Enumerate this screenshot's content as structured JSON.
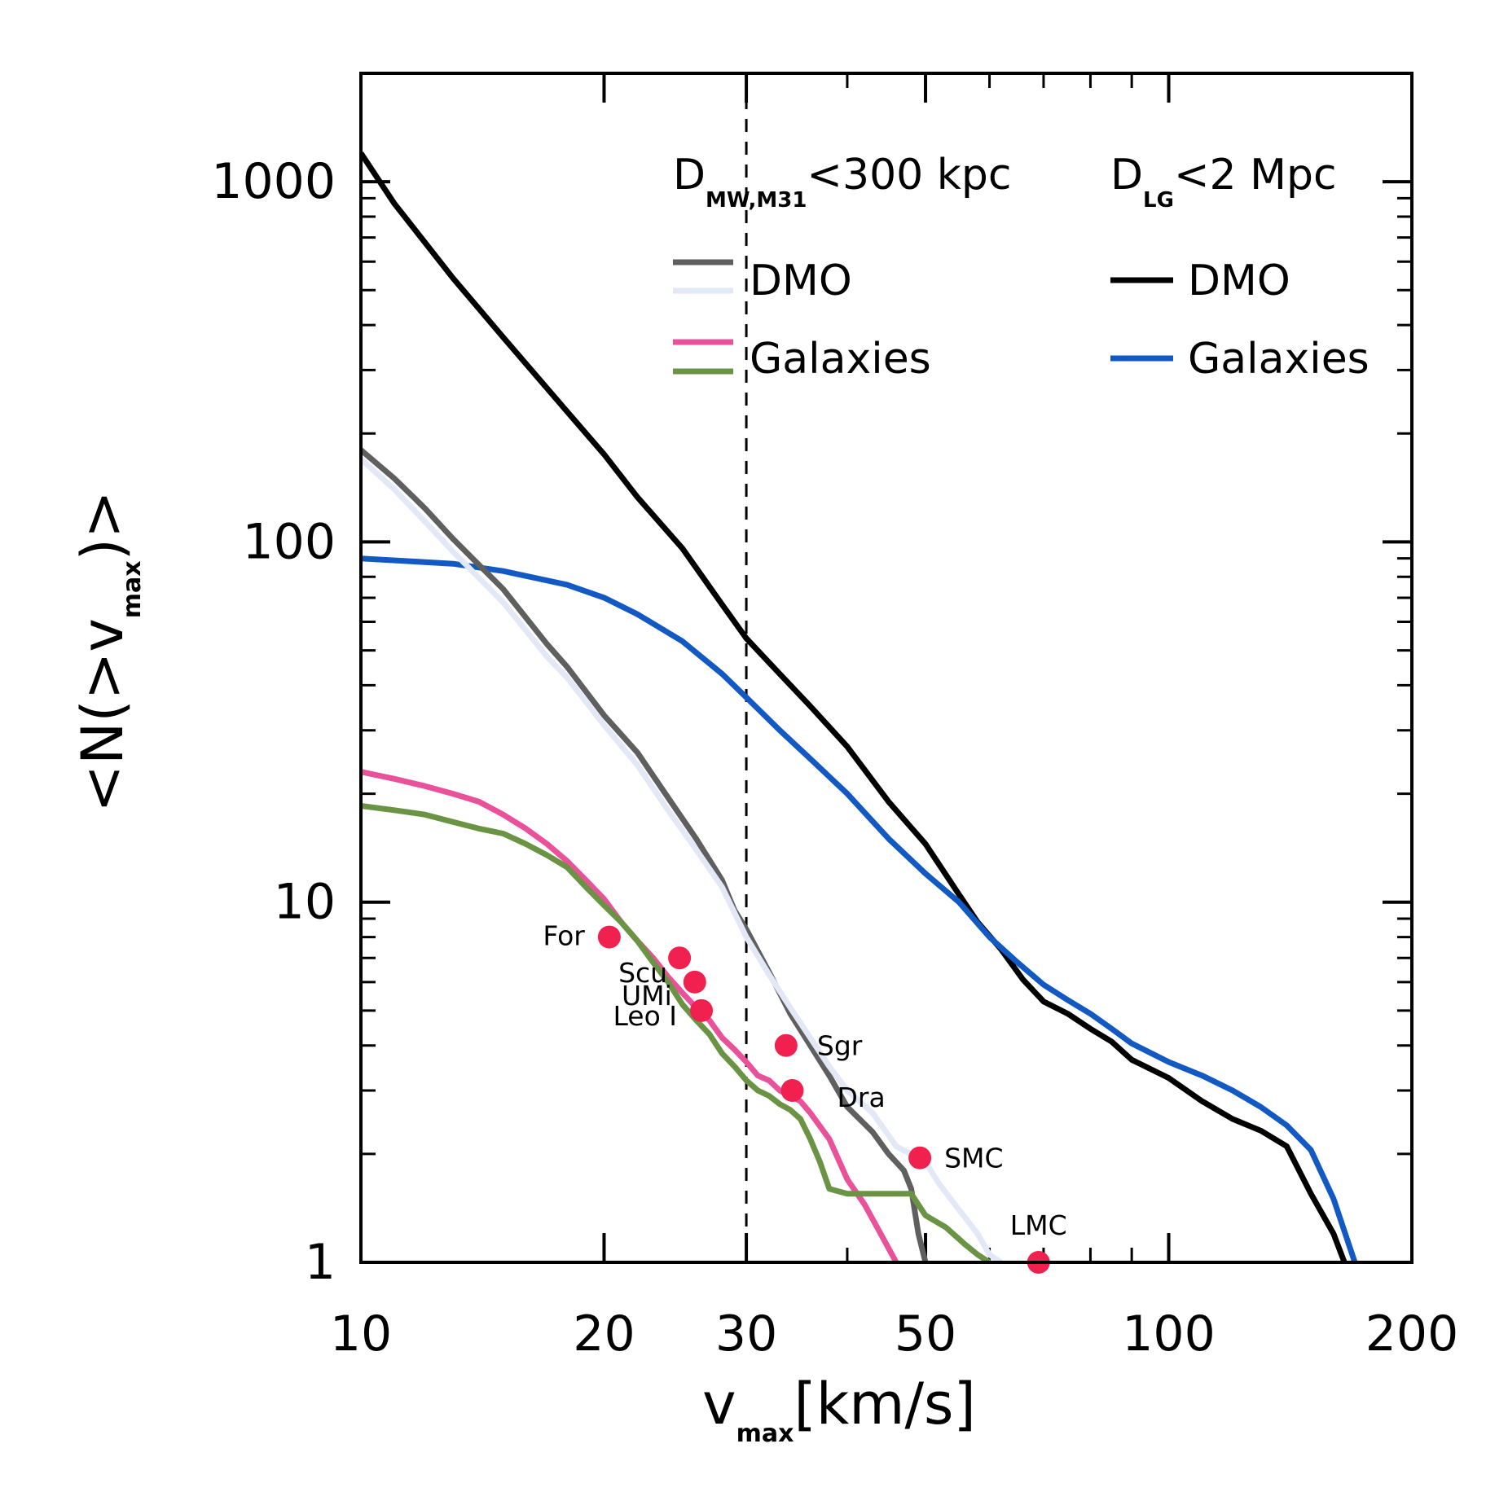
{
  "chart_data": {
    "type": "line",
    "xscale": "log",
    "yscale": "log",
    "xlim": [
      10,
      200
    ],
    "ylim": [
      1,
      2000
    ],
    "xlabel": "v",
    "xlabel_sub": "max",
    "xlabel_unit": "[km/s]",
    "ylabel": "<N(>v",
    "ylabel_sub": "max",
    "ylabel_end": ")>",
    "xticks": [
      {
        "v": 10,
        "label": "10"
      },
      {
        "v": 20,
        "label": "20"
      },
      {
        "v": 30,
        "label": "30"
      },
      {
        "v": 50,
        "label": "50"
      },
      {
        "v": 100,
        "label": "100"
      },
      {
        "v": 200,
        "label": "200"
      }
    ],
    "yticks": [
      {
        "v": 1,
        "label": "1"
      },
      {
        "v": 10,
        "label": "10"
      },
      {
        "v": 100,
        "label": "100"
      },
      {
        "v": 1000,
        "label": "1000"
      }
    ],
    "vline": {
      "x": 30,
      "style": "dashed"
    },
    "legend": {
      "placement": "top-right",
      "group1_title": "D",
      "group1_sub": "MW,M31",
      "group1_cond": "<300 kpc",
      "group2_title": "D",
      "group2_sub": "LG",
      "group2_cond": "<2 Mpc",
      "dmo_label": "DMO",
      "galaxies_label": "Galaxies"
    },
    "series": [
      {
        "name": "DMO (D_LG<2 Mpc)",
        "color": "#000000",
        "points": [
          [
            10,
            1200
          ],
          [
            11,
            870
          ],
          [
            13,
            540
          ],
          [
            15,
            370
          ],
          [
            18,
            230
          ],
          [
            20,
            175
          ],
          [
            22,
            133
          ],
          [
            25,
            96
          ],
          [
            28,
            67
          ],
          [
            30,
            54
          ],
          [
            33,
            43
          ],
          [
            36,
            35
          ],
          [
            40,
            27
          ],
          [
            45,
            19
          ],
          [
            50,
            14.5
          ],
          [
            55,
            10.5
          ],
          [
            58,
            8.8
          ],
          [
            62,
            7.4
          ],
          [
            66,
            6.1
          ],
          [
            70,
            5.3
          ],
          [
            75,
            4.9
          ],
          [
            80,
            4.45
          ],
          [
            85,
            4.1
          ],
          [
            90,
            3.65
          ],
          [
            100,
            3.25
          ],
          [
            110,
            2.8
          ],
          [
            120,
            2.5
          ],
          [
            130,
            2.32
          ],
          [
            140,
            2.1
          ],
          [
            150,
            1.55
          ],
          [
            160,
            1.2
          ],
          [
            165,
            1.0
          ]
        ]
      },
      {
        "name": "Galaxies (D_LG<2 Mpc)",
        "color": "#1259c3",
        "points": [
          [
            10,
            90
          ],
          [
            13,
            87
          ],
          [
            15,
            83
          ],
          [
            18,
            76
          ],
          [
            20,
            70
          ],
          [
            22,
            63
          ],
          [
            25,
            53
          ],
          [
            28,
            43
          ],
          [
            30,
            37
          ],
          [
            33,
            30
          ],
          [
            36,
            25
          ],
          [
            40,
            20
          ],
          [
            45,
            15
          ],
          [
            50,
            12
          ],
          [
            55,
            10
          ],
          [
            60,
            8
          ],
          [
            65,
            6.8
          ],
          [
            70,
            5.9
          ],
          [
            75,
            5.35
          ],
          [
            80,
            4.9
          ],
          [
            85,
            4.45
          ],
          [
            90,
            4.05
          ],
          [
            100,
            3.6
          ],
          [
            110,
            3.3
          ],
          [
            120,
            3.0
          ],
          [
            130,
            2.7
          ],
          [
            140,
            2.4
          ],
          [
            150,
            2.05
          ],
          [
            160,
            1.5
          ],
          [
            170,
            1.0
          ]
        ]
      },
      {
        "name": "DMO (D_MW,M31<300 kpc), dark",
        "color": "#5f5f5f",
        "points": [
          [
            10,
            180
          ],
          [
            11,
            150
          ],
          [
            12,
            124
          ],
          [
            13,
            102
          ],
          [
            15,
            74
          ],
          [
            17,
            52
          ],
          [
            18,
            45
          ],
          [
            20,
            33
          ],
          [
            22,
            26
          ],
          [
            24,
            19.5
          ],
          [
            26,
            15
          ],
          [
            28,
            11.5
          ],
          [
            29,
            9.5
          ],
          [
            30,
            8.4
          ],
          [
            32,
            6.4
          ],
          [
            34,
            4.9
          ],
          [
            36,
            4.0
          ],
          [
            38,
            3.3
          ],
          [
            40,
            2.7
          ],
          [
            43,
            2.3
          ],
          [
            45,
            2.0
          ],
          [
            47,
            1.8
          ],
          [
            48,
            1.6
          ],
          [
            49,
            1.2
          ],
          [
            50,
            1.0
          ]
        ]
      },
      {
        "name": "DMO (D_MW,M31<300 kpc), light",
        "color": "#e2e8f6",
        "points": [
          [
            10,
            170
          ],
          [
            11,
            140
          ],
          [
            12,
            114
          ],
          [
            13,
            94
          ],
          [
            15,
            68
          ],
          [
            17,
            48
          ],
          [
            18,
            42
          ],
          [
            20,
            31
          ],
          [
            22,
            24
          ],
          [
            24,
            18
          ],
          [
            26,
            14
          ],
          [
            28,
            11
          ],
          [
            30,
            8.0
          ],
          [
            32,
            6.3
          ],
          [
            34,
            5.1
          ],
          [
            36,
            4.2
          ],
          [
            38,
            3.5
          ],
          [
            40,
            3.0
          ],
          [
            43,
            2.6
          ],
          [
            46,
            2.1
          ],
          [
            50,
            1.9
          ],
          [
            52,
            1.65
          ],
          [
            55,
            1.4
          ],
          [
            58,
            1.2
          ],
          [
            60,
            1.05
          ],
          [
            62,
            1.0
          ]
        ]
      },
      {
        "name": "Galaxies (D_MW,M31<300 kpc), pink",
        "color": "#e9519a",
        "points": [
          [
            10,
            23
          ],
          [
            11,
            22
          ],
          [
            12,
            21
          ],
          [
            13,
            20
          ],
          [
            14,
            19
          ],
          [
            15,
            17.5
          ],
          [
            16,
            16
          ],
          [
            17,
            14.5
          ],
          [
            18,
            13
          ],
          [
            19,
            11.5
          ],
          [
            20,
            10.2
          ],
          [
            21,
            8.8
          ],
          [
            22,
            7.8
          ],
          [
            23,
            7.0
          ],
          [
            24,
            6.2
          ],
          [
            25,
            5.6
          ],
          [
            26,
            5.1
          ],
          [
            27,
            4.7
          ],
          [
            28,
            4.2
          ],
          [
            29,
            3.9
          ],
          [
            30,
            3.6
          ],
          [
            31,
            3.3
          ],
          [
            32,
            3.2
          ],
          [
            33,
            3.0
          ],
          [
            34,
            2.9
          ],
          [
            35,
            2.8
          ],
          [
            36,
            2.6
          ],
          [
            38,
            2.2
          ],
          [
            40,
            1.7
          ],
          [
            42,
            1.45
          ],
          [
            44,
            1.2
          ],
          [
            46,
            1.0
          ]
        ]
      },
      {
        "name": "Galaxies (D_MW,M31<300 kpc), green",
        "color": "#6a9344",
        "points": [
          [
            10,
            18.5
          ],
          [
            11,
            18
          ],
          [
            12,
            17.5
          ],
          [
            13,
            16.7
          ],
          [
            14,
            16
          ],
          [
            15,
            15.5
          ],
          [
            16,
            14.5
          ],
          [
            17,
            13.5
          ],
          [
            18,
            12.5
          ],
          [
            19,
            11
          ],
          [
            20,
            9.8
          ],
          [
            21,
            8.8
          ],
          [
            22,
            7.8
          ],
          [
            23,
            6.8
          ],
          [
            24,
            6.0
          ],
          [
            25,
            5.2
          ],
          [
            26,
            4.7
          ],
          [
            27,
            4.3
          ],
          [
            28,
            3.8
          ],
          [
            29,
            3.5
          ],
          [
            30,
            3.2
          ],
          [
            31,
            3.0
          ],
          [
            32,
            2.9
          ],
          [
            33,
            2.75
          ],
          [
            34,
            2.65
          ],
          [
            35,
            2.5
          ],
          [
            36,
            2.2
          ],
          [
            37,
            1.9
          ],
          [
            38,
            1.6
          ],
          [
            40,
            1.55
          ],
          [
            45,
            1.55
          ],
          [
            48,
            1.55
          ],
          [
            50,
            1.35
          ],
          [
            53,
            1.25
          ],
          [
            56,
            1.12
          ],
          [
            58,
            1.05
          ],
          [
            60,
            1.0
          ]
        ]
      }
    ],
    "satellites": [
      {
        "name": "For",
        "x": 20.3,
        "y": 8.0
      },
      {
        "name": "Scu",
        "x": 24.8,
        "y": 7.0
      },
      {
        "name": "UMi",
        "x": 25.9,
        "y": 6.0
      },
      {
        "name": "Leo I",
        "x": 26.4,
        "y": 5.0
      },
      {
        "name": "Sgr",
        "x": 33.6,
        "y": 4.0
      },
      {
        "name": "Dra",
        "x": 34.2,
        "y": 3.0
      },
      {
        "name": "SMC",
        "x": 49.2,
        "y": 1.95
      },
      {
        "name": "LMC",
        "x": 69.0,
        "y": 1.0
      }
    ],
    "satellite_color": "#f0204f"
  }
}
